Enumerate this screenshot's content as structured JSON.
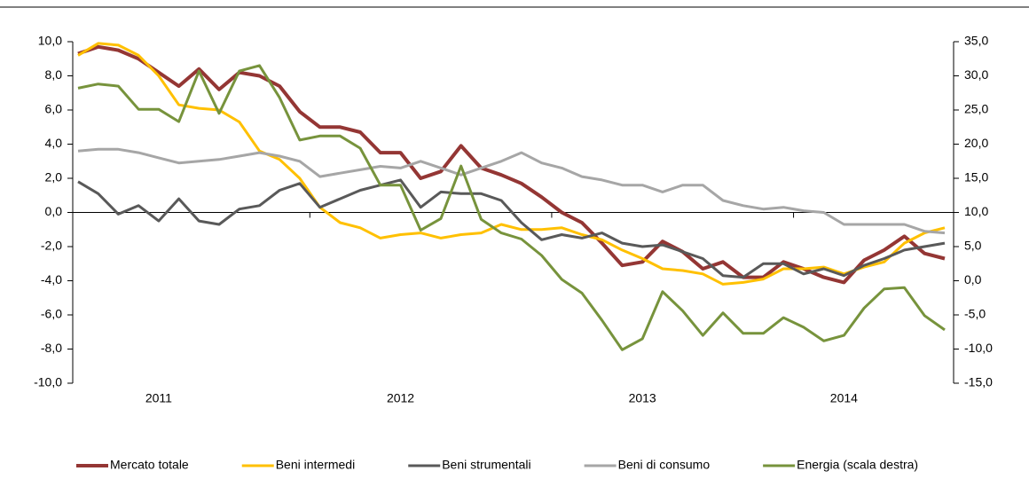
{
  "chart_data": {
    "type": "line",
    "categories": [
      null,
      null,
      null,
      null,
      "2011",
      null,
      null,
      null,
      null,
      null,
      null,
      null,
      null,
      null,
      null,
      null,
      "2012",
      null,
      null,
      null,
      null,
      null,
      null,
      null,
      null,
      null,
      null,
      null,
      "2013",
      null,
      null,
      null,
      null,
      null,
      null,
      null,
      null,
      null,
      "2014",
      null,
      null,
      null,
      null,
      null
    ],
    "ylim": [
      -10,
      10
    ],
    "yticks": [
      {
        "value": -10,
        "label": "-10,0"
      },
      {
        "value": -8,
        "label": "-8,0"
      },
      {
        "value": -6,
        "label": "-6,0"
      },
      {
        "value": -4,
        "label": "-4,0"
      },
      {
        "value": -2,
        "label": "-2,0"
      },
      {
        "value": 0,
        "label": "0,0"
      },
      {
        "value": 2,
        "label": "2,0"
      },
      {
        "value": 4,
        "label": "4,0"
      },
      {
        "value": 6,
        "label": "6,0"
      },
      {
        "value": 8,
        "label": "8,0"
      },
      {
        "value": 10,
        "label": "10,0"
      }
    ],
    "y2lim": [
      -15,
      35
    ],
    "y2ticks": [
      {
        "value": -15,
        "label": "-15,0"
      },
      {
        "value": -10,
        "label": "-10,0"
      },
      {
        "value": -5,
        "label": "-5,0"
      },
      {
        "value": 0,
        "label": "0,0"
      },
      {
        "value": 5,
        "label": "5,0"
      },
      {
        "value": 10,
        "label": "10,0"
      },
      {
        "value": 15,
        "label": "15,0"
      },
      {
        "value": 20,
        "label": "20,0"
      },
      {
        "value": 25,
        "label": "25,0"
      },
      {
        "value": 30,
        "label": "30,0"
      },
      {
        "value": 35,
        "label": "35,0"
      }
    ],
    "legend": "bottom",
    "series": [
      {
        "name": "Mercato totale",
        "color": "#943634",
        "values": [
          9.3,
          9.7,
          9.5,
          9.0,
          8.2,
          7.4,
          8.4,
          7.2,
          8.2,
          8.0,
          7.4,
          5.9,
          5.0,
          5.0,
          4.7,
          3.5,
          3.5,
          2.0,
          2.4,
          3.9,
          2.6,
          2.2,
          1.7,
          0.9,
          0.0,
          -0.6,
          -1.8,
          -3.1,
          -2.9,
          -1.7,
          -2.3,
          -3.3,
          -2.9,
          -3.8,
          -3.8,
          -2.9,
          -3.3,
          -3.8,
          -4.1,
          -2.8,
          -2.2,
          -1.4,
          -2.4,
          -2.7
        ]
      },
      {
        "name": "Beni intermedi",
        "color": "#ffc000",
        "values": [
          9.2,
          9.9,
          9.8,
          9.2,
          8.0,
          6.3,
          6.1,
          6.0,
          5.3,
          3.6,
          3.1,
          2.0,
          0.3,
          -0.6,
          -0.9,
          -1.5,
          -1.3,
          -1.2,
          -1.5,
          -1.3,
          -1.2,
          -0.7,
          -1.0,
          -1.0,
          -0.9,
          -1.3,
          -1.6,
          -2.2,
          -2.7,
          -3.3,
          -3.4,
          -3.6,
          -4.2,
          -4.1,
          -3.9,
          -3.3,
          -3.3,
          -3.2,
          -3.6,
          -3.2,
          -2.9,
          -1.8,
          -1.2,
          -0.9
        ]
      },
      {
        "name": "Beni strumentali",
        "color": "#595959",
        "values": [
          1.8,
          1.1,
          -0.1,
          0.4,
          -0.5,
          0.8,
          -0.5,
          -0.7,
          0.2,
          0.4,
          1.3,
          1.7,
          0.3,
          0.8,
          1.3,
          1.6,
          1.9,
          0.3,
          1.2,
          1.1,
          1.1,
          0.7,
          -0.6,
          -1.6,
          -1.3,
          -1.5,
          -1.2,
          -1.8,
          -2.0,
          -1.9,
          -2.3,
          -2.7,
          -3.7,
          -3.8,
          -3.0,
          -3.0,
          -3.6,
          -3.3,
          -3.7,
          -3.1,
          -2.7,
          -2.2,
          -2.0,
          -1.8
        ]
      },
      {
        "name": "Beni di consumo",
        "color": "#a6a6a6",
        "values": [
          3.6,
          3.7,
          3.7,
          3.5,
          3.2,
          2.9,
          3.0,
          3.1,
          3.3,
          3.5,
          3.3,
          3.0,
          2.1,
          2.3,
          2.5,
          2.7,
          2.6,
          3.0,
          2.6,
          2.2,
          2.6,
          3.0,
          3.5,
          2.9,
          2.6,
          2.1,
          1.9,
          1.6,
          1.6,
          1.2,
          1.6,
          1.6,
          0.7,
          0.4,
          0.2,
          0.3,
          0.1,
          0.0,
          -0.7,
          -0.7,
          -0.7,
          -0.7,
          -1.1,
          -1.2
        ]
      },
      {
        "name": "Energia (scala destra)",
        "color": "#77933c",
        "axis": "y2",
        "values": [
          28.2,
          28.8,
          28.5,
          25.1,
          25.1,
          23.3,
          30.7,
          24.5,
          30.7,
          31.5,
          26.8,
          20.6,
          21.2,
          21.2,
          19.4,
          14.0,
          14.0,
          7.4,
          9.1,
          16.8,
          9.0,
          7.0,
          6.1,
          3.7,
          0.2,
          -1.8,
          -5.8,
          -10.1,
          -8.5,
          -1.6,
          -4.4,
          -8.0,
          -4.7,
          -7.7,
          -7.7,
          -5.4,
          -6.8,
          -8.8,
          -8.0,
          -4.0,
          -1.2,
          -1.0,
          -5.1,
          -7.2
        ]
      }
    ]
  }
}
